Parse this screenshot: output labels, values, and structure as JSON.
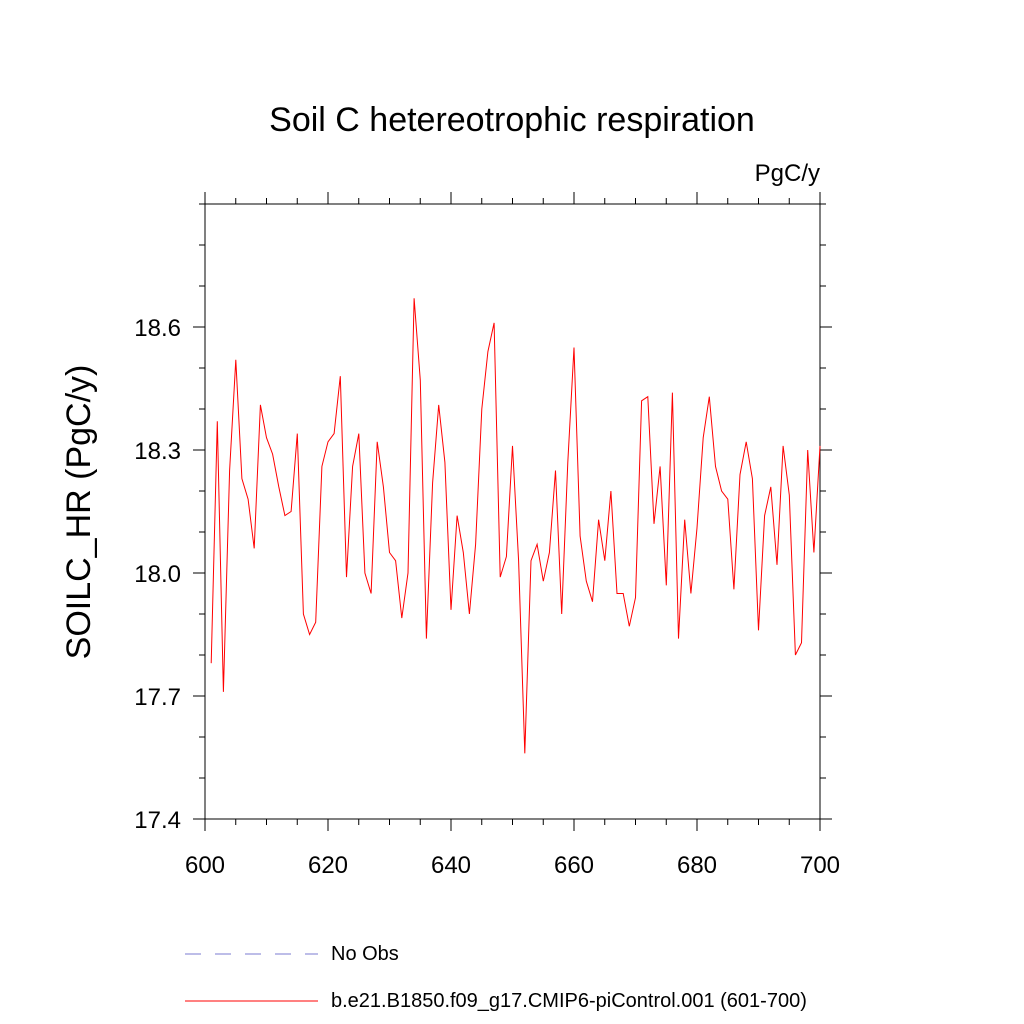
{
  "chart_data": {
    "type": "line",
    "title": "Soil C hetereotrophic respiration",
    "units": "PgC/y",
    "xlabel": "",
    "ylabel": "SOILC_HR  (PgC/y)",
    "xlim": [
      600,
      700
    ],
    "ylim": [
      17.4,
      18.9
    ],
    "x_ticks": [
      600,
      620,
      640,
      660,
      680,
      700
    ],
    "x_tick_labels": [
      "600",
      "620",
      "640",
      "660",
      "680",
      "700"
    ],
    "y_ticks": [
      17.4,
      17.7,
      18.0,
      18.3,
      18.6
    ],
    "y_tick_labels": [
      "17.4",
      "17.7",
      "18.0",
      "18.3",
      "18.6"
    ],
    "grid": false,
    "legend_position": "bottom-left below plot",
    "series": [
      {
        "name": "b.e21.B1850.f09_g17.CMIP6-piControl.001 (601-700)",
        "color": "#ff0000",
        "style": "solid",
        "x": [
          601,
          602,
          603,
          604,
          605,
          606,
          607,
          608,
          609,
          610,
          611,
          612,
          613,
          614,
          615,
          616,
          617,
          618,
          619,
          620,
          621,
          622,
          623,
          624,
          625,
          626,
          627,
          628,
          629,
          630,
          631,
          632,
          633,
          634,
          635,
          636,
          637,
          638,
          639,
          640,
          641,
          642,
          643,
          644,
          645,
          646,
          647,
          648,
          649,
          650,
          651,
          652,
          653,
          654,
          655,
          656,
          657,
          658,
          659,
          660,
          661,
          662,
          663,
          664,
          665,
          666,
          667,
          668,
          669,
          670,
          671,
          672,
          673,
          674,
          675,
          676,
          677,
          678,
          679,
          680,
          681,
          682,
          683,
          684,
          685,
          686,
          687,
          688,
          689,
          690,
          691,
          692,
          693,
          694,
          695,
          696,
          697,
          698,
          699,
          700
        ],
        "y": [
          17.78,
          18.37,
          17.71,
          18.25,
          18.52,
          18.23,
          18.18,
          18.06,
          18.41,
          18.33,
          18.29,
          18.21,
          18.14,
          18.15,
          18.34,
          17.9,
          17.85,
          17.88,
          18.26,
          18.32,
          18.34,
          18.48,
          17.99,
          18.26,
          18.34,
          18.0,
          17.95,
          18.32,
          18.21,
          18.05,
          18.03,
          17.89,
          18.0,
          18.67,
          18.47,
          17.84,
          18.22,
          18.41,
          18.27,
          17.91,
          18.14,
          18.05,
          17.9,
          18.07,
          18.4,
          18.54,
          18.61,
          17.99,
          18.04,
          18.31,
          18.03,
          17.56,
          18.03,
          18.07,
          17.98,
          18.05,
          18.25,
          17.9,
          18.27,
          18.55,
          18.09,
          17.98,
          17.93,
          18.13,
          18.03,
          18.2,
          17.95,
          17.95,
          17.87,
          17.94,
          18.42,
          18.43,
          18.12,
          18.26,
          17.97,
          18.44,
          17.84,
          18.13,
          17.95,
          18.11,
          18.33,
          18.43,
          18.26,
          18.2,
          18.18,
          17.96,
          18.24,
          18.32,
          18.23,
          17.86,
          18.14,
          18.21,
          18.02,
          18.31,
          18.19,
          17.8,
          17.83,
          18.3,
          18.05,
          18.31
        ]
      },
      {
        "name": "No Obs",
        "color": "#7b7bd0",
        "style": "dashed",
        "x": [],
        "y": []
      }
    ]
  }
}
